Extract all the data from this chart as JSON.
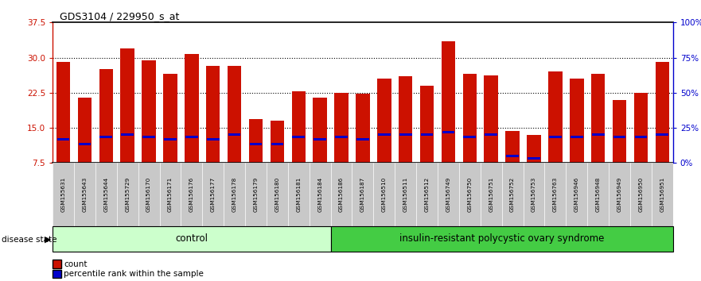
{
  "title": "GDS3104 / 229950_s_at",
  "samples": [
    "GSM155631",
    "GSM155643",
    "GSM155644",
    "GSM155729",
    "GSM156170",
    "GSM156171",
    "GSM156176",
    "GSM156177",
    "GSM156178",
    "GSM156179",
    "GSM156180",
    "GSM156181",
    "GSM156184",
    "GSM156186",
    "GSM156187",
    "GSM156510",
    "GSM156511",
    "GSM156512",
    "GSM156749",
    "GSM156750",
    "GSM156751",
    "GSM156752",
    "GSM156753",
    "GSM156763",
    "GSM156946",
    "GSM156948",
    "GSM156949",
    "GSM156950",
    "GSM156951"
  ],
  "counts": [
    29.0,
    21.5,
    27.5,
    32.0,
    29.5,
    26.5,
    30.8,
    28.3,
    28.2,
    16.8,
    16.5,
    22.8,
    21.5,
    22.5,
    22.3,
    25.5,
    26.0,
    24.0,
    33.5,
    26.5,
    26.2,
    14.3,
    13.5,
    27.0,
    25.5,
    26.5,
    21.0,
    22.5,
    29.0
  ],
  "percentile_ranks": [
    12.5,
    11.5,
    13.0,
    13.5,
    13.0,
    12.5,
    13.0,
    12.5,
    13.5,
    11.5,
    11.5,
    13.0,
    12.5,
    13.0,
    12.5,
    13.5,
    13.5,
    13.5,
    14.0,
    13.0,
    13.5,
    9.0,
    8.5,
    13.0,
    13.0,
    13.5,
    13.0,
    13.0,
    13.5
  ],
  "control_count": 13,
  "disease_label": "insulin-resistant polycystic ovary syndrome",
  "control_label": "control",
  "y_min": 7.5,
  "y_max": 37.5,
  "y_ticks": [
    7.5,
    15.0,
    22.5,
    30.0,
    37.5
  ],
  "right_y_ticks": [
    0,
    25,
    50,
    75,
    100
  ],
  "right_y_labels": [
    "0%",
    "25%",
    "50%",
    "75%",
    "100%"
  ],
  "bar_color": "#CC1100",
  "percentile_color": "#0000CC",
  "control_bg": "#CCFFCC",
  "disease_bg": "#44CC44",
  "tick_label_bg": "#C8C8C8",
  "left_axis_color": "#CC1100",
  "right_axis_color": "#0000CC"
}
